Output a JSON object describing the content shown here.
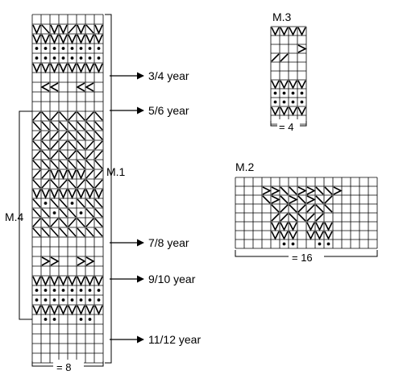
{
  "charts": {
    "m1": {
      "name": "M.1",
      "width_label": "= 8"
    },
    "m2": {
      "name": "M.2",
      "width_label": "= 16"
    },
    "m3": {
      "name": "M.3",
      "width_label": "= 4"
    },
    "m4": {
      "name": "M.4"
    }
  },
  "size_markers": [
    "3/4 year",
    "5/6 year",
    "7/8 year",
    "9/10 year",
    "11/12 year"
  ],
  "symbols": {
    "v": "v-stitch-symbol",
    "dot": "dot-stitch-symbol",
    "slash": "diagonal-symbol",
    "chev_left": "left-chevron-symbol",
    "chev_right": "right-chevron-symbol"
  }
}
